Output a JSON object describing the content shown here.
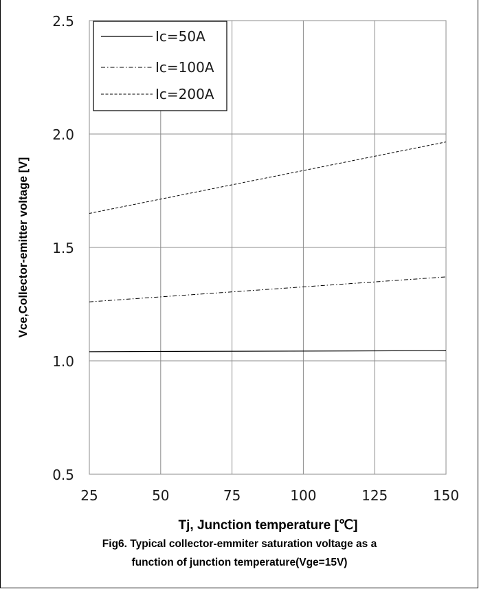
{
  "chart_data": {
    "type": "line",
    "xlabel": "Tj, Junction temperature [℃]",
    "ylabel": "Vce,Collector-emitter voltage [V]",
    "xlim": [
      25,
      150
    ],
    "ylim": [
      0.5,
      2.5
    ],
    "x_ticks": [
      "25",
      "50",
      "75",
      "100",
      "125",
      "150"
    ],
    "y_ticks": [
      "0.5",
      "1.0",
      "1.5",
      "2.0",
      "2.5"
    ],
    "grid": true,
    "legend_position": "top-left",
    "series": [
      {
        "name": "Ic=50A",
        "style": "solid",
        "x": [
          25,
          150
        ],
        "y": [
          1.04,
          1.045
        ]
      },
      {
        "name": "Ic=100A",
        "style": "dash-dot",
        "x": [
          25,
          150
        ],
        "y": [
          1.26,
          1.37
        ]
      },
      {
        "name": "Ic=200A",
        "style": "dashed",
        "x": [
          25,
          150
        ],
        "y": [
          1.65,
          1.965
        ]
      }
    ]
  },
  "caption": {
    "line1": "Fig6. Typical collector-emmiter saturation voltage as a",
    "line2": "function of junction temperature(Vge=15V)"
  }
}
